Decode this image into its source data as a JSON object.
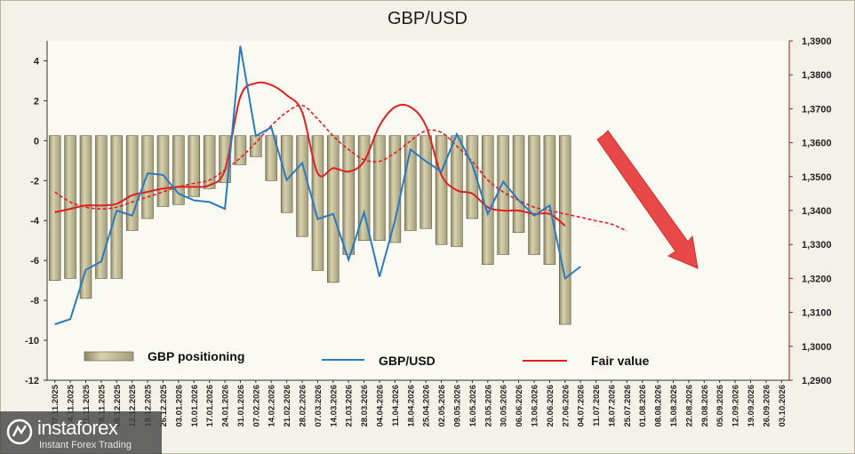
{
  "chart_data": {
    "type": "bar",
    "title": "GBP/USD",
    "x_labels": [
      "07.11.2025",
      "14.11.2025",
      "21.11.2025",
      "28.11.2025",
      "05.12.2025",
      "12.12.2025",
      "19.12.2025",
      "26.12.2025",
      "03.01.2026",
      "10.01.2026",
      "17.01.2026",
      "24.01.2026",
      "31.01.2026",
      "07.02.2026",
      "14.02.2026",
      "21.02.2026",
      "28.02.2026",
      "07.03.2026",
      "14.03.2026",
      "21.03.2026",
      "28.03.2026",
      "04.04.2026",
      "11.04.2026",
      "18.04.2026",
      "25.04.2026",
      "02.05.2026",
      "09.05.2026",
      "16.05.2026",
      "23.05.2026",
      "30.05.2026",
      "06.06.2026",
      "13.06.2026",
      "20.06.2026",
      "27.06.2026",
      "04.07.2026",
      "11.07.2026",
      "18.07.2026",
      "25.07.2026",
      "01.08.2026",
      "08.08.2026",
      "15.08.2026",
      "22.08.2026",
      "29.08.2026",
      "05.09.2026",
      "12.09.2026",
      "19.09.2026",
      "26.09.2026",
      "03.10.2026"
    ],
    "left_axis": {
      "ylim": [
        -12,
        5
      ],
      "ticks": [
        4,
        2,
        0,
        -2,
        -4,
        -6,
        -8,
        -10,
        -12
      ]
    },
    "right_axis": {
      "ylim": [
        1.29,
        1.39
      ],
      "ticks": [
        "1,3900",
        "1,3800",
        "1,3700",
        "1,3600",
        "1,3500",
        "1,3400",
        "1,3300",
        "1,3200",
        "1,3100",
        "1,3000",
        "1,2900"
      ]
    },
    "series": [
      {
        "name": "GBP positioning",
        "type": "bar",
        "axis": "left",
        "color": "#c9c29a",
        "values": [
          -7.0,
          -6.9,
          -7.9,
          -6.9,
          -6.9,
          -4.5,
          -3.9,
          -3.3,
          -3.2,
          -2.8,
          -2.4,
          -2.1,
          -1.2,
          -0.8,
          -2.0,
          -3.6,
          -4.8,
          -6.5,
          -7.1,
          -5.7,
          -5.0,
          -5.0,
          -5.1,
          -4.5,
          -4.4,
          -5.2,
          -5.3,
          -3.9,
          -6.2,
          -5.7,
          -4.6,
          -5.7,
          -6.2,
          -9.2
        ]
      },
      {
        "name": "GBP/USD",
        "type": "line",
        "axis": "right",
        "color": "#2a7abf",
        "values": [
          1.3065,
          1.308,
          1.3225,
          1.325,
          1.34,
          1.3385,
          1.351,
          1.3505,
          1.345,
          1.343,
          1.3425,
          1.3405,
          1.3885,
          1.362,
          1.3645,
          1.349,
          1.354,
          1.3375,
          1.339,
          1.3255,
          1.3395,
          1.3205,
          1.337,
          1.358,
          1.3545,
          1.3515,
          1.3625,
          1.3535,
          1.339,
          1.3485,
          1.343,
          1.3385,
          1.3415,
          1.32,
          1.3235
        ]
      },
      {
        "name": "Fair value",
        "type": "line",
        "axis": "right",
        "color": "#e02020",
        "values": [
          1.3395,
          1.3405,
          1.3415,
          1.3415,
          1.342,
          1.3445,
          1.3455,
          1.3465,
          1.347,
          1.347,
          1.3475,
          1.352,
          1.3735,
          1.3775,
          1.377,
          1.374,
          1.369,
          1.351,
          1.3525,
          1.3515,
          1.3545,
          1.365,
          1.3705,
          1.3705,
          1.365,
          1.3505,
          1.346,
          1.345,
          1.341,
          1.34,
          1.34,
          1.339,
          1.339,
          1.3355
        ]
      },
      {
        "name": "",
        "type": "line",
        "style": "dashed",
        "axis": "right",
        "color": "#e02020",
        "values": [
          1.3455,
          1.3425,
          1.341,
          1.3405,
          1.341,
          1.3425,
          1.344,
          1.3455,
          1.347,
          1.348,
          1.349,
          1.352,
          1.3555,
          1.36,
          1.365,
          1.369,
          1.371,
          1.367,
          1.362,
          1.358,
          1.355,
          1.3545,
          1.357,
          1.3605,
          1.3635,
          1.363,
          1.359,
          1.3545,
          1.349,
          1.3455,
          1.343,
          1.341,
          1.34,
          1.339,
          1.338,
          1.337,
          1.336,
          1.334
        ]
      }
    ],
    "grid": false,
    "legend_position": "bottom",
    "annotation": "red-down-arrow"
  },
  "legend": {
    "positioning": "GBP positioning",
    "spot": "GBP/USD",
    "fair": "Fair value"
  },
  "watermark": {
    "name": "instaforex",
    "tagline": "Instant Forex Trading"
  },
  "colors": {
    "plot_bg": "#fbfaf2",
    "bar": "#c9c29a",
    "bar_edge": "#5a5640",
    "spot": "#2a7abf",
    "fair": "#e02020",
    "arrow": "#e84848"
  }
}
